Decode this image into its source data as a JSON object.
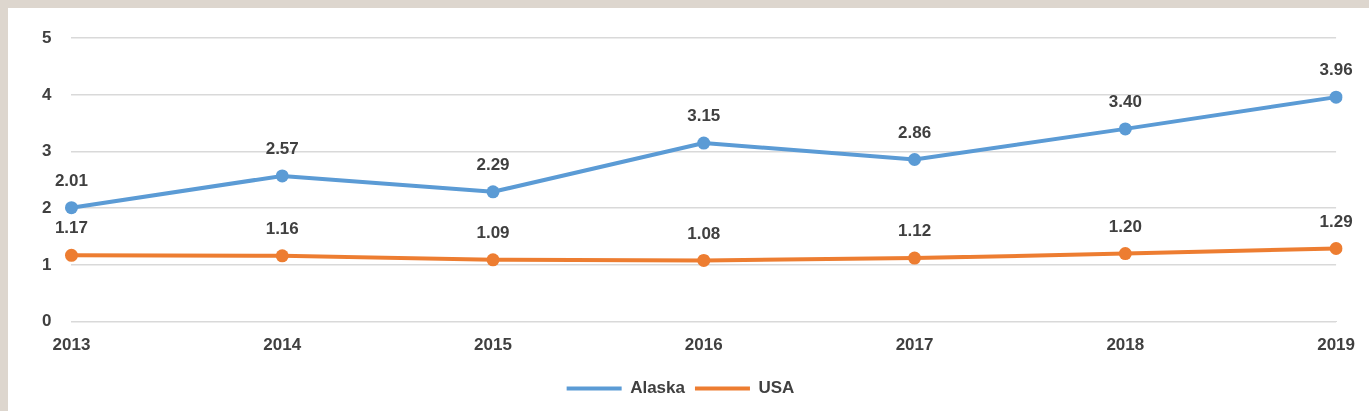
{
  "chart_data": {
    "type": "line",
    "categories": [
      "2013",
      "2014",
      "2015",
      "2016",
      "2017",
      "2018",
      "2019"
    ],
    "series": [
      {
        "name": "Alaska",
        "color": "#5b9bd5",
        "values": [
          2.01,
          2.57,
          2.29,
          3.15,
          2.86,
          3.4,
          3.96
        ],
        "value_labels": [
          "2.01",
          "2.57",
          "2.29",
          "3.15",
          "2.86",
          "3.40",
          "3.96"
        ]
      },
      {
        "name": "USA",
        "color": "#ed7d31",
        "values": [
          1.17,
          1.16,
          1.09,
          1.08,
          1.12,
          1.2,
          1.29
        ],
        "value_labels": [
          "1.17",
          "1.16",
          "1.09",
          "1.08",
          "1.12",
          "1.20",
          "1.29"
        ]
      }
    ],
    "ylim": [
      0,
      5
    ],
    "yticks": [
      0,
      1,
      2,
      3,
      4,
      5
    ],
    "grid": "y",
    "legend": "bottom",
    "marker": "circle"
  }
}
